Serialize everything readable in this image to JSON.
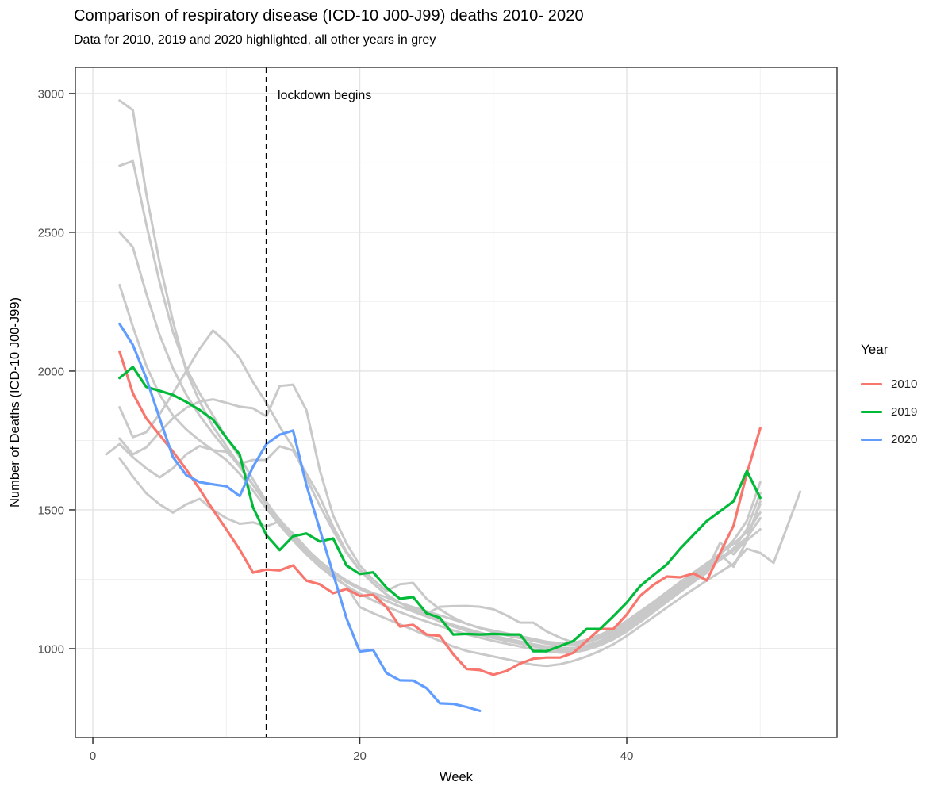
{
  "figure": {
    "title": "Comparison of respiratory disease (ICD-10 J00-J99) deaths 2010- 2020",
    "subtitle": "Data for 2010, 2019 and 2020 highlighted, all other years in grey"
  },
  "chart_data": {
    "type": "line",
    "title": "Comparison of respiratory disease (ICD-10 J00-J99) deaths 2010- 2020",
    "subtitle": "Data for 2010, 2019 and 2020 highlighted, all other years in grey",
    "xlabel": "Week",
    "ylabel": "Number of Deaths (ICD-10 J00-J99)",
    "xlim": [
      -1.31,
      55.75
    ],
    "ylim": [
      680,
      3094
    ],
    "x_major_ticks": [
      0,
      20,
      40
    ],
    "x_minor_ticks": [
      10,
      30,
      50
    ],
    "y_major_ticks": [
      1000,
      1500,
      2000,
      2500,
      3000
    ],
    "y_minor_ticks": [
      750,
      1250,
      1750,
      2250,
      2750
    ],
    "grid": true,
    "legend_position": "right",
    "vline": {
      "x": 13,
      "style": "dashed",
      "color": "#000000"
    },
    "annotation": {
      "text": "lockdown begins",
      "x": 13.85,
      "y": 2990
    },
    "legend": {
      "title": "Year",
      "entries": [
        {
          "label": "2010",
          "color": "#F8766D"
        },
        {
          "label": "2019",
          "color": "#00BA38"
        },
        {
          "label": "2020",
          "color": "#619CFF"
        }
      ]
    },
    "colors": {
      "grey_series": "#C9C9C9",
      "grid_major": "#E4E4E4",
      "grid_minor": "#F0F0F0",
      "panel_border": "#333333",
      "tick_text": "#4D4D4D"
    },
    "series": [
      {
        "name": "grey-1",
        "group": "other years",
        "color": "grey",
        "start_week": 2,
        "values": [
          2975,
          2940,
          2640,
          2390,
          2180,
          2000,
          1890,
          1800,
          1730,
          1660,
          1590,
          1520,
          1450,
          1395,
          1345,
          1305,
          1270,
          1245,
          1220,
          1200,
          1185,
          1165,
          1150,
          1135,
          1120,
          1105,
          1090,
          1075,
          1065,
          1055,
          1045,
          1035,
          1025,
          1020,
          1020,
          1030,
          1045,
          1065,
          1090,
          1125,
          1160,
          1195,
          1230,
          1265,
          1300,
          1340,
          1390,
          1460,
          1600
        ]
      },
      {
        "name": "grey-2",
        "group": "other years",
        "color": "grey",
        "start_week": 2,
        "values": [
          2740,
          2757,
          2530,
          2320,
          2140,
          2010,
          1920,
          1840,
          1760,
          1690,
          1610,
          1530,
          1460,
          1400,
          1350,
          1310,
          1272,
          1240,
          1215,
          1192,
          1172,
          1152,
          1135,
          1118,
          1102,
          1086,
          1072,
          1058,
          1046,
          1036,
          1026,
          1016,
          1008,
          1002,
          1002,
          1012,
          1028,
          1050,
          1078,
          1112,
          1148,
          1185,
          1222,
          1258,
          1292,
          1325,
          1360,
          1430,
          1560
        ]
      },
      {
        "name": "grey-3",
        "group": "other years",
        "color": "grey",
        "start_week": 2,
        "values": [
          2500,
          2446,
          2280,
          2130,
          2010,
          1915,
          1840,
          1775,
          1715,
          1655,
          1590,
          1525,
          1465,
          1410,
          1360,
          1315,
          1278,
          1246,
          1218,
          1194,
          1172,
          1152,
          1134,
          1116,
          1100,
          1084,
          1068,
          1054,
          1042,
          1032,
          1022,
          1012,
          1004,
          998,
          998,
          1008,
          1024,
          1046,
          1074,
          1108,
          1144,
          1180,
          1216,
          1252,
          1286,
          1320,
          1354,
          1400,
          1520
        ]
      },
      {
        "name": "grey-4",
        "group": "other years",
        "color": "grey",
        "start_week": 2,
        "values": [
          2310,
          2160,
          2020,
          1915,
          1840,
          1790,
          1750,
          1715,
          1680,
          1630,
          1570,
          1505,
          1445,
          1390,
          1340,
          1295,
          1258,
          1226,
          1198,
          1174,
          1152,
          1132,
          1114,
          1098,
          1082,
          1066,
          1052,
          1040,
          1028,
          1018,
          1008,
          998,
          990,
          986,
          986,
          996,
          1012,
          1034,
          1062,
          1096,
          1132,
          1168,
          1204,
          1240,
          1274,
          1340,
          1295,
          1390,
          1430
        ]
      },
      {
        "name": "grey-5",
        "group": "other years",
        "color": "grey",
        "start_week": 2,
        "values": [
          1870,
          1762,
          1780,
          1845,
          1920,
          2000,
          2080,
          2146,
          2103,
          2046,
          1960,
          1886,
          1800,
          1725,
          1615,
          1515,
          1425,
          1345,
          1282,
          1235,
          1195,
          1165,
          1140,
          1118,
          1098,
          1080,
          1064,
          1050,
          1038,
          1028,
          1018,
          1008,
          1000,
          994,
          994,
          1004,
          1020,
          1042,
          1070,
          1104,
          1140,
          1176,
          1212,
          1248,
          1282,
          1382,
          1340,
          1395,
          1530
        ]
      },
      {
        "name": "grey-6",
        "group": "other years",
        "color": "grey",
        "start_week": 2,
        "values": [
          1757,
          1700,
          1725,
          1780,
          1830,
          1868,
          1890,
          1898,
          1886,
          1872,
          1866,
          1837,
          1946,
          1951,
          1860,
          1643,
          1480,
          1380,
          1300,
          1248,
          1208,
          1232,
          1237,
          1180,
          1142,
          1112,
          1090,
          1074,
          1060,
          1048,
          1038,
          1028,
          1018,
          1012,
          1012,
          1022,
          1038,
          1058,
          1085,
          1118,
          1152,
          1188,
          1224,
          1258,
          1292,
          1326,
          1362,
          1400,
          1470
        ]
      },
      {
        "name": "grey-7",
        "group": "other years",
        "color": "grey",
        "start_week": 1,
        "values": [
          1700,
          1737,
          1690,
          1650,
          1617,
          1650,
          1700,
          1730,
          1715,
          1709,
          1666,
          1680,
          1680,
          1729,
          1714,
          1631,
          1546,
          1440,
          1350,
          1285,
          1235,
          1195,
          1165,
          1142,
          1125,
          1151,
          1153,
          1154,
          1151,
          1142,
          1120,
          1094,
          1094,
          1062,
          1040,
          1022,
          1032,
          1050,
          1072,
          1100,
          1134,
          1168,
          1204,
          1240,
          1274,
          1308,
          1342,
          1378,
          1420,
          1490
        ]
      },
      {
        "name": "grey-8",
        "group": "other years",
        "color": "grey",
        "start_week": 2,
        "values": [
          1686,
          1620,
          1560,
          1520,
          1490,
          1520,
          1540,
          1500,
          1470,
          1450,
          1455,
          1440,
          1460,
          1415,
          1362,
          1308,
          1262,
          1226,
          1150,
          1128,
          1108,
          1088,
          1068,
          1048,
          1028,
          1008,
          992,
          982,
          972,
          962,
          952,
          942,
          938,
          944,
          956,
          972,
          992,
          1016,
          1046,
          1080,
          1114,
          1148,
          1182,
          1214,
          1246,
          1276,
          1306,
          1360,
          1345,
          1309,
          1437,
          1566
        ]
      },
      {
        "name": "2010",
        "group": "highlighted",
        "color": "#F8766D",
        "start_week": 2,
        "values": [
          2070,
          1920,
          1830,
          1770,
          1710,
          1645,
          1575,
          1500,
          1430,
          1357,
          1274,
          1285,
          1282,
          1300,
          1245,
          1232,
          1200,
          1215,
          1190,
          1194,
          1150,
          1080,
          1086,
          1051,
          1046,
          980,
          927,
          923,
          906,
          920,
          946,
          964,
          968,
          968,
          985,
          1028,
          1071,
          1071,
          1123,
          1190,
          1230,
          1260,
          1257,
          1271,
          1246,
          1346,
          1443,
          1631,
          1794
        ]
      },
      {
        "name": "2019",
        "group": "highlighted",
        "color": "#00BA38",
        "start_week": 2,
        "values": [
          1975,
          2015,
          1943,
          1929,
          1914,
          1889,
          1860,
          1825,
          1760,
          1700,
          1509,
          1409,
          1355,
          1405,
          1415,
          1386,
          1397,
          1300,
          1269,
          1275,
          1220,
          1180,
          1186,
          1128,
          1111,
          1051,
          1053,
          1051,
          1053,
          1051,
          1051,
          991,
          991,
          1009,
          1028,
          1071,
          1071,
          1117,
          1166,
          1225,
          1265,
          1303,
          1360,
          1410,
          1460,
          1495,
          1531,
          1640,
          1543
        ]
      },
      {
        "name": "2020",
        "group": "highlighted",
        "color": "#619CFF",
        "start_week": 2,
        "values": [
          2170,
          2094,
          1975,
          1830,
          1690,
          1625,
          1600,
          1592,
          1585,
          1550,
          1655,
          1737,
          1771,
          1786,
          1590,
          1430,
          1270,
          1110,
          990,
          995,
          912,
          886,
          885,
          858,
          803,
          801,
          790,
          776
        ]
      }
    ]
  }
}
